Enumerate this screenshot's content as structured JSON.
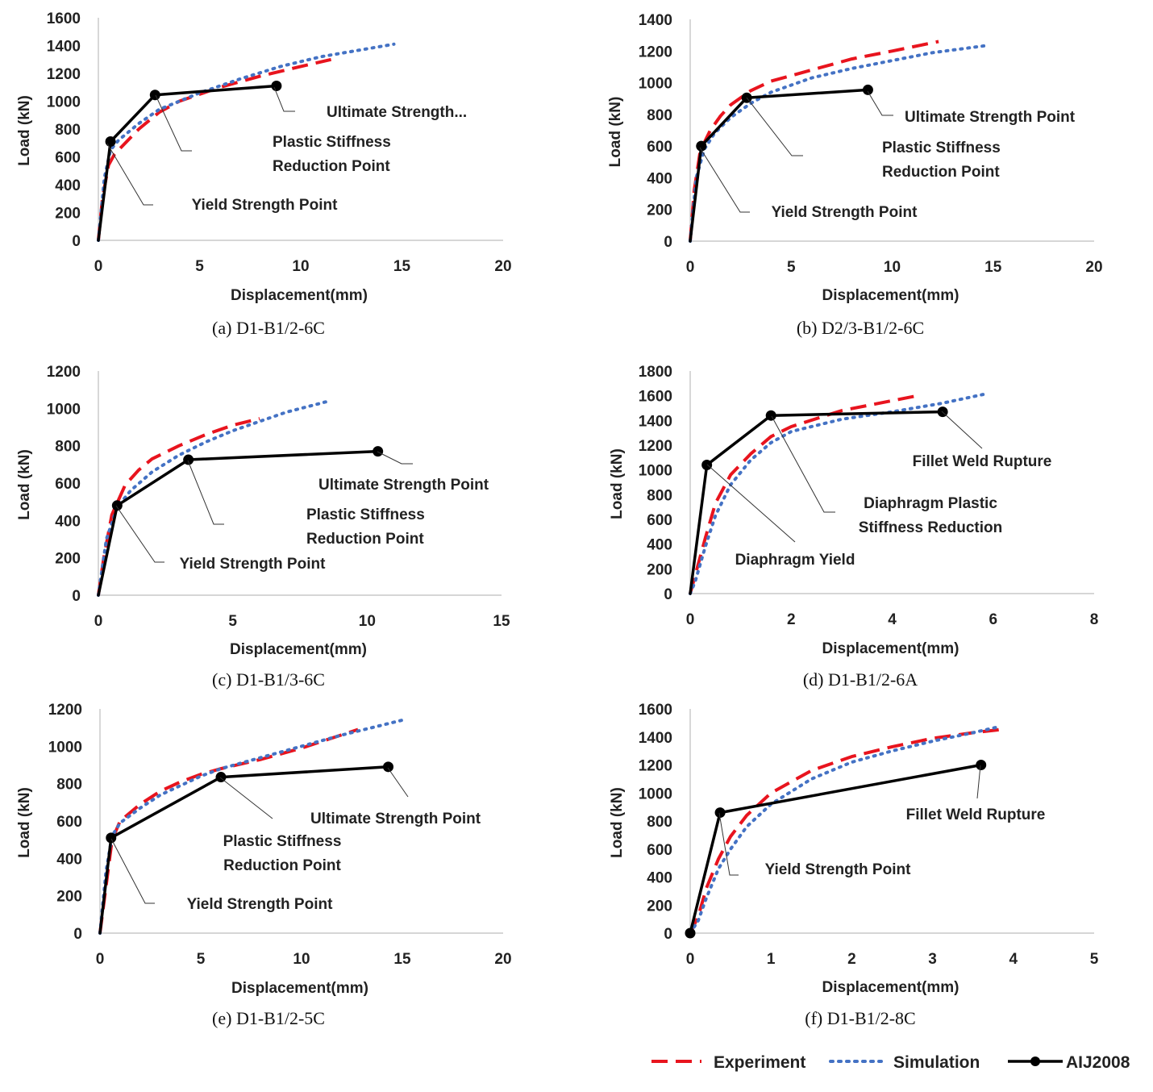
{
  "legend": {
    "experiment": "Experiment",
    "simulation": "Simulation",
    "aij": "AIJ2008"
  },
  "colors": {
    "experiment": "#e8141e",
    "simulation": "#4472c4",
    "aij": "#000000"
  },
  "chart_data": [
    {
      "id": "a",
      "type": "line",
      "caption": "(a)  D1-B1/2-6C",
      "xlabel": "Displacement(mm)",
      "ylabel": "Load (kN)",
      "xlim": [
        0,
        20
      ],
      "ylim": [
        0,
        1600
      ],
      "xticks": [
        0,
        5,
        10,
        15,
        20
      ],
      "yticks": [
        0,
        200,
        400,
        600,
        800,
        1000,
        1200,
        1400,
        1600
      ],
      "series": [
        {
          "name": "Experiment",
          "x": [
            0,
            0.2,
            0.5,
            0.8,
            1.2,
            2,
            3,
            4,
            6,
            8,
            10,
            11.5
          ],
          "y": [
            0,
            300,
            540,
            620,
            680,
            800,
            920,
            1000,
            1100,
            1180,
            1250,
            1300
          ]
        },
        {
          "name": "Simulation",
          "x": [
            0,
            0.3,
            0.6,
            1,
            2,
            3,
            5,
            7,
            9,
            11,
            13,
            14.6
          ],
          "y": [
            0,
            450,
            650,
            720,
            840,
            940,
            1060,
            1160,
            1250,
            1320,
            1370,
            1410
          ]
        },
        {
          "name": "AIJ2008",
          "x": [
            0,
            0.6,
            2.8,
            8.8
          ],
          "y": [
            0,
            710,
            1045,
            1110
          ]
        }
      ],
      "annotations": [
        {
          "lines": [
            "Ultimate Strength..."
          ]
        },
        {
          "lines": [
            "Plastic Stiffness",
            "Reduction Point"
          ]
        },
        {
          "lines": [
            "Yield Strength Point"
          ]
        }
      ]
    },
    {
      "id": "b",
      "type": "line",
      "caption": "(b)  D2/3-B1/2-6C",
      "xlabel": "Displacement(mm)",
      "ylabel": "Load (kN)",
      "xlim": [
        0,
        20
      ],
      "ylim": [
        0,
        1400
      ],
      "xticks": [
        0,
        5,
        10,
        15,
        20
      ],
      "yticks": [
        0,
        200,
        400,
        600,
        800,
        1000,
        1200,
        1400
      ],
      "series": [
        {
          "name": "Experiment",
          "x": [
            0,
            0.2,
            0.5,
            1,
            1.5,
            2,
            3,
            4,
            6,
            8,
            10,
            12.3
          ],
          "y": [
            0,
            320,
            570,
            700,
            790,
            860,
            950,
            1010,
            1080,
            1150,
            1200,
            1260
          ]
        },
        {
          "name": "Simulation",
          "x": [
            0,
            0.3,
            0.7,
            1.2,
            2,
            3,
            4,
            6,
            8,
            10,
            12,
            14.7
          ],
          "y": [
            0,
            400,
            580,
            680,
            780,
            870,
            940,
            1030,
            1090,
            1140,
            1190,
            1235
          ]
        },
        {
          "name": "AIJ2008",
          "x": [
            0,
            0.55,
            2.8,
            8.8
          ],
          "y": [
            0,
            600,
            905,
            955
          ]
        }
      ],
      "annotations": [
        {
          "lines": [
            "Ultimate Strength Point"
          ]
        },
        {
          "lines": [
            "Plastic Stiffness",
            "Reduction Point"
          ]
        },
        {
          "lines": [
            "Yield Strength Point"
          ]
        }
      ]
    },
    {
      "id": "c",
      "type": "line",
      "caption": "(c)  D1-B1/3-6C",
      "xlabel": "Displacement(mm)",
      "ylabel": "Load (kN)",
      "xlim": [
        0,
        15
      ],
      "ylim": [
        0,
        1200
      ],
      "xticks": [
        0,
        5,
        10,
        15
      ],
      "yticks": [
        0,
        200,
        400,
        600,
        800,
        1000,
        1200
      ],
      "series": [
        {
          "name": "Experiment",
          "x": [
            0,
            0.2,
            0.5,
            1,
            1.5,
            2,
            3,
            4,
            5,
            6
          ],
          "y": [
            0,
            200,
            430,
            590,
            670,
            730,
            800,
            860,
            910,
            945
          ]
        },
        {
          "name": "Simulation",
          "x": [
            0,
            0.3,
            0.7,
            1.2,
            2,
            3,
            4,
            5,
            6,
            7,
            8.6
          ],
          "y": [
            0,
            300,
            470,
            560,
            660,
            750,
            820,
            880,
            930,
            980,
            1040
          ]
        },
        {
          "name": "AIJ2008",
          "x": [
            0,
            0.7,
            3.35,
            10.4
          ],
          "y": [
            0,
            480,
            725,
            770
          ]
        }
      ],
      "annotations": [
        {
          "lines": [
            "Ultimate Strength Point"
          ]
        },
        {
          "lines": [
            "Plastic Stiffness",
            "Reduction Point"
          ]
        },
        {
          "lines": [
            "Yield Strength Point"
          ]
        }
      ]
    },
    {
      "id": "d",
      "type": "line",
      "caption": "(d)  D1-B1/2-6A",
      "xlabel": "Displacement(mm)",
      "ylabel": "Load (kN)",
      "xlim": [
        0,
        8
      ],
      "ylim": [
        0,
        1800
      ],
      "xticks": [
        0,
        2,
        4,
        6,
        8
      ],
      "yticks": [
        0,
        200,
        400,
        600,
        800,
        1000,
        1200,
        1400,
        1600,
        1800
      ],
      "series": [
        {
          "name": "Experiment",
          "x": [
            0,
            0.1,
            0.3,
            0.5,
            0.8,
            1.2,
            1.6,
            2,
            3,
            4,
            4.5
          ],
          "y": [
            0,
            150,
            450,
            730,
            960,
            1130,
            1270,
            1350,
            1480,
            1560,
            1600
          ]
        },
        {
          "name": "Simulation",
          "x": [
            0,
            0.1,
            0.3,
            0.5,
            0.8,
            1.2,
            1.6,
            2,
            3,
            4,
            5,
            5.8
          ],
          "y": [
            0,
            100,
            380,
            630,
            880,
            1080,
            1220,
            1310,
            1410,
            1470,
            1540,
            1610
          ]
        },
        {
          "name": "AIJ2008",
          "x": [
            0,
            0.33,
            1.6,
            5
          ],
          "y": [
            0,
            1040,
            1440,
            1470
          ]
        }
      ],
      "annotations": [
        {
          "lines": [
            "Fillet Weld Rupture"
          ]
        },
        {
          "lines": [
            "Diaphragm Plastic",
            "Stiffness Reduction"
          ]
        },
        {
          "lines": [
            "Diaphragm Yield"
          ]
        }
      ]
    },
    {
      "id": "e",
      "type": "line",
      "caption": "(e)  D1-B1/2-5C",
      "xlabel": "Displacement(mm)",
      "ylabel": "Load (kN)",
      "xlim": [
        0,
        20
      ],
      "ylim": [
        0,
        1200
      ],
      "xticks": [
        0,
        5,
        10,
        15,
        20
      ],
      "yticks": [
        0,
        200,
        400,
        600,
        800,
        1000,
        1200
      ],
      "series": [
        {
          "name": "Experiment",
          "x": [
            0,
            0.3,
            0.6,
            1,
            2,
            3,
            4,
            5,
            6,
            8,
            10,
            12.8
          ],
          "y": [
            0,
            250,
            500,
            600,
            690,
            760,
            810,
            850,
            880,
            930,
            990,
            1090
          ]
        },
        {
          "name": "Simulation",
          "x": [
            0,
            0.3,
            0.6,
            1,
            2,
            3,
            4,
            5,
            6,
            8,
            10,
            12,
            15
          ],
          "y": [
            0,
            330,
            520,
            590,
            670,
            740,
            790,
            840,
            880,
            940,
            1000,
            1060,
            1140
          ]
        },
        {
          "name": "AIJ2008",
          "x": [
            0,
            0.55,
            6,
            14.3
          ],
          "y": [
            0,
            510,
            835,
            890
          ]
        }
      ],
      "annotations": [
        {
          "lines": [
            "Ultimate Strength Point"
          ]
        },
        {
          "lines": [
            "Plastic Stiffness",
            "Reduction Point"
          ]
        },
        {
          "lines": [
            "Yield Strength Point"
          ]
        }
      ]
    },
    {
      "id": "f",
      "type": "line",
      "caption": "(f)  D1-B1/2-8C",
      "xlabel": "Displacement(mm)",
      "ylabel": "Load (kN)",
      "xlim": [
        0,
        5
      ],
      "ylim": [
        0,
        1600
      ],
      "xticks": [
        0,
        1,
        2,
        3,
        4,
        5
      ],
      "yticks": [
        0,
        200,
        400,
        600,
        800,
        1000,
        1200,
        1400,
        1600
      ],
      "series": [
        {
          "name": "Experiment",
          "x": [
            0,
            0.1,
            0.2,
            0.35,
            0.5,
            0.7,
            1,
            1.5,
            2,
            2.5,
            3,
            3.5,
            3.8,
            3.9
          ],
          "y": [
            0,
            120,
            320,
            530,
            690,
            840,
            1000,
            1160,
            1260,
            1330,
            1390,
            1430,
            1450,
            1460
          ]
        },
        {
          "name": "Simulation",
          "x": [
            0,
            0.1,
            0.2,
            0.35,
            0.5,
            0.7,
            1,
            1.5,
            2,
            2.5,
            3,
            3.5,
            3.8
          ],
          "y": [
            0,
            90,
            250,
            460,
            600,
            760,
            920,
            1100,
            1220,
            1300,
            1370,
            1430,
            1470
          ]
        },
        {
          "name": "AIJ2008",
          "x": [
            0,
            0.37,
            3.6
          ],
          "y": [
            0,
            860,
            1200
          ]
        }
      ],
      "annotations": [
        {
          "lines": [
            "Fillet Weld Rupture"
          ]
        },
        {
          "lines": [
            "Yield Strength Point"
          ]
        }
      ]
    }
  ]
}
